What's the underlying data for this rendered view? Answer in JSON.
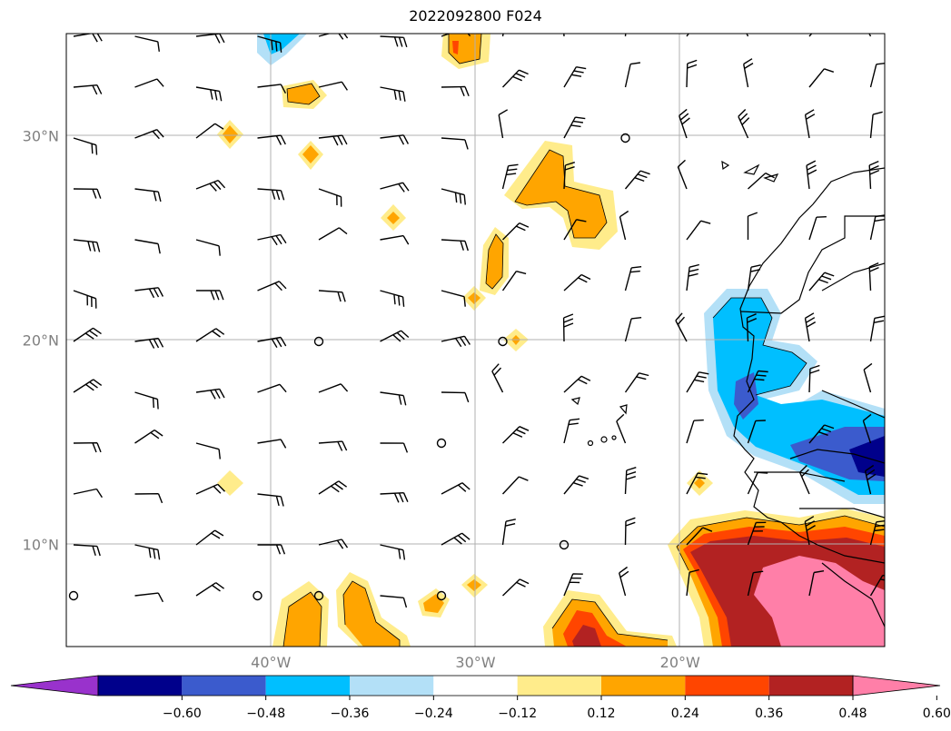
{
  "title": "2022092800 F024",
  "lat_ticks": [
    {
      "value": 30,
      "label": "30°N"
    },
    {
      "value": 20,
      "label": "20°N"
    },
    {
      "value": 10,
      "label": "10°N"
    }
  ],
  "lon_ticks": [
    {
      "value": -40,
      "label": "40°W"
    },
    {
      "value": -30,
      "label": "30°W"
    },
    {
      "value": -20,
      "label": "20°W"
    }
  ],
  "colorbar": {
    "levels": [
      "−0.60",
      "−0.48",
      "−0.36",
      "−0.24",
      "−0.12",
      "0.12",
      "0.24",
      "0.36",
      "0.48",
      "0.60"
    ],
    "colors": [
      "#9932cc",
      "#00008b",
      "#3b5bcd",
      "#00bfff",
      "#b3e0f7",
      "#ffffff",
      "#ffec8b",
      "#ffa500",
      "#ff4500",
      "#b22222",
      "#ff7fa8"
    ],
    "extend": "both"
  },
  "map_extent": {
    "lon": [
      -50,
      -10
    ],
    "lat": [
      5,
      35
    ]
  },
  "gridlines": true
}
